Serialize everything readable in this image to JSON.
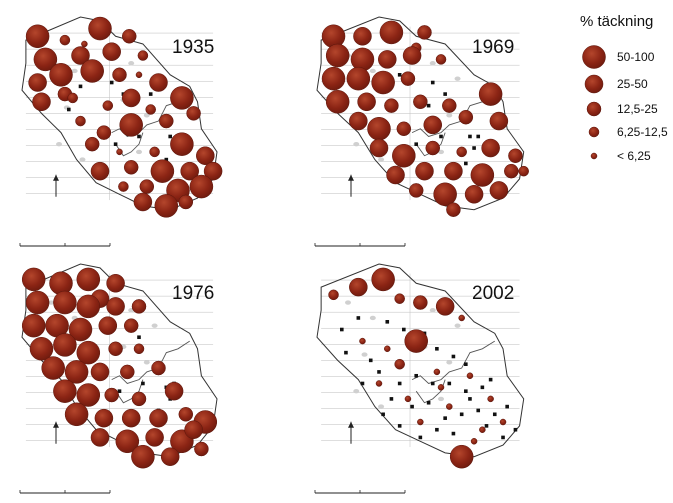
{
  "legend": {
    "title": "% täckning",
    "color": "#8b2414",
    "items": [
      {
        "label": "50-100",
        "level": 5
      },
      {
        "label": "25-50",
        "level": 4
      },
      {
        "label": "12,5-25",
        "level": 3
      },
      {
        "label": "6,25-12,5",
        "level": 2
      },
      {
        "label": "< 6,25",
        "level": 1
      }
    ]
  },
  "maps": [
    {
      "year": "1935",
      "circles": [
        [
          0.08,
          0.1,
          5
        ],
        [
          0.22,
          0.12,
          2
        ],
        [
          0.4,
          0.06,
          5
        ],
        [
          0.55,
          0.1,
          3
        ],
        [
          0.32,
          0.14,
          1
        ],
        [
          0.12,
          0.22,
          5
        ],
        [
          0.3,
          0.2,
          4
        ],
        [
          0.46,
          0.18,
          4
        ],
        [
          0.62,
          0.2,
          2
        ],
        [
          0.08,
          0.34,
          4
        ],
        [
          0.2,
          0.3,
          5
        ],
        [
          0.36,
          0.28,
          5
        ],
        [
          0.5,
          0.3,
          3
        ],
        [
          0.22,
          0.4,
          3
        ],
        [
          0.6,
          0.3,
          1
        ],
        [
          0.1,
          0.44,
          4
        ],
        [
          0.26,
          0.42,
          2
        ],
        [
          0.44,
          0.46,
          2
        ],
        [
          0.56,
          0.42,
          4
        ],
        [
          0.7,
          0.34,
          4
        ],
        [
          0.82,
          0.42,
          5
        ],
        [
          0.66,
          0.48,
          2
        ],
        [
          0.3,
          0.54,
          2
        ],
        [
          0.42,
          0.6,
          3
        ],
        [
          0.56,
          0.56,
          5
        ],
        [
          0.74,
          0.54,
          3
        ],
        [
          0.88,
          0.5,
          3
        ],
        [
          0.36,
          0.66,
          3
        ],
        [
          0.5,
          0.7,
          1
        ],
        [
          0.68,
          0.7,
          2
        ],
        [
          0.82,
          0.66,
          5
        ],
        [
          0.94,
          0.72,
          4
        ],
        [
          0.4,
          0.8,
          4
        ],
        [
          0.56,
          0.78,
          3
        ],
        [
          0.72,
          0.8,
          5
        ],
        [
          0.86,
          0.8,
          4
        ],
        [
          0.98,
          0.8,
          4
        ],
        [
          0.52,
          0.88,
          2
        ],
        [
          0.64,
          0.88,
          3
        ],
        [
          0.8,
          0.9,
          5
        ],
        [
          0.92,
          0.88,
          5
        ],
        [
          0.62,
          0.96,
          4
        ],
        [
          0.74,
          0.98,
          5
        ],
        [
          0.84,
          0.96,
          3
        ]
      ],
      "squares": [
        [
          0.46,
          0.34
        ],
        [
          0.52,
          0.4
        ],
        [
          0.66,
          0.4
        ],
        [
          0.76,
          0.62
        ],
        [
          0.8,
          0.62
        ],
        [
          0.78,
          0.68
        ],
        [
          0.3,
          0.36
        ],
        [
          0.24,
          0.48
        ],
        [
          0.6,
          0.62
        ],
        [
          0.48,
          0.66
        ],
        [
          0.74,
          0.74
        ],
        [
          0.38,
          0.26
        ]
      ]
    },
    {
      "year": "1969",
      "circles": [
        [
          0.08,
          0.1,
          5
        ],
        [
          0.22,
          0.1,
          4
        ],
        [
          0.36,
          0.08,
          5
        ],
        [
          0.52,
          0.08,
          3
        ],
        [
          0.48,
          0.16,
          2
        ],
        [
          0.1,
          0.2,
          5
        ],
        [
          0.22,
          0.22,
          5
        ],
        [
          0.34,
          0.22,
          4
        ],
        [
          0.46,
          0.2,
          4
        ],
        [
          0.6,
          0.22,
          2
        ],
        [
          0.08,
          0.32,
          5
        ],
        [
          0.2,
          0.32,
          5
        ],
        [
          0.32,
          0.34,
          5
        ],
        [
          0.44,
          0.32,
          3
        ],
        [
          0.1,
          0.44,
          5
        ],
        [
          0.24,
          0.44,
          4
        ],
        [
          0.36,
          0.46,
          3
        ],
        [
          0.5,
          0.44,
          3
        ],
        [
          0.64,
          0.46,
          3
        ],
        [
          0.84,
          0.4,
          5
        ],
        [
          0.2,
          0.54,
          4
        ],
        [
          0.3,
          0.58,
          5
        ],
        [
          0.42,
          0.58,
          3
        ],
        [
          0.56,
          0.56,
          4
        ],
        [
          0.72,
          0.52,
          3
        ],
        [
          0.88,
          0.54,
          4
        ],
        [
          0.3,
          0.68,
          4
        ],
        [
          0.42,
          0.72,
          5
        ],
        [
          0.56,
          0.68,
          3
        ],
        [
          0.7,
          0.7,
          2
        ],
        [
          0.84,
          0.68,
          4
        ],
        [
          0.96,
          0.72,
          3
        ],
        [
          0.38,
          0.82,
          4
        ],
        [
          0.52,
          0.8,
          4
        ],
        [
          0.66,
          0.8,
          4
        ],
        [
          0.8,
          0.82,
          5
        ],
        [
          0.94,
          0.8,
          3
        ],
        [
          0.48,
          0.9,
          3
        ],
        [
          0.62,
          0.92,
          5
        ],
        [
          0.76,
          0.92,
          4
        ],
        [
          0.88,
          0.9,
          4
        ],
        [
          0.66,
          1.0,
          3
        ],
        [
          1.0,
          0.8,
          2
        ]
      ],
      "squares": [
        [
          0.56,
          0.34
        ],
        [
          0.62,
          0.4
        ],
        [
          0.74,
          0.62
        ],
        [
          0.78,
          0.62
        ],
        [
          0.76,
          0.68
        ],
        [
          0.6,
          0.62
        ],
        [
          0.48,
          0.66
        ],
        [
          0.72,
          0.76
        ],
        [
          0.4,
          0.3
        ],
        [
          0.54,
          0.46
        ]
      ]
    },
    {
      "year": "1976",
      "circles": [
        [
          0.06,
          0.08,
          5
        ],
        [
          0.2,
          0.1,
          5
        ],
        [
          0.34,
          0.08,
          5
        ],
        [
          0.48,
          0.1,
          4
        ],
        [
          0.4,
          0.18,
          4
        ],
        [
          0.08,
          0.2,
          5
        ],
        [
          0.22,
          0.2,
          5
        ],
        [
          0.34,
          0.22,
          5
        ],
        [
          0.48,
          0.22,
          4
        ],
        [
          0.6,
          0.22,
          3
        ],
        [
          0.06,
          0.32,
          5
        ],
        [
          0.18,
          0.32,
          5
        ],
        [
          0.3,
          0.34,
          5
        ],
        [
          0.44,
          0.32,
          4
        ],
        [
          0.56,
          0.32,
          3
        ],
        [
          0.1,
          0.44,
          5
        ],
        [
          0.22,
          0.42,
          5
        ],
        [
          0.34,
          0.46,
          5
        ],
        [
          0.48,
          0.44,
          3
        ],
        [
          0.6,
          0.44,
          2
        ],
        [
          0.16,
          0.54,
          5
        ],
        [
          0.28,
          0.56,
          5
        ],
        [
          0.4,
          0.56,
          4
        ],
        [
          0.54,
          0.56,
          3
        ],
        [
          0.7,
          0.54,
          3
        ],
        [
          0.22,
          0.66,
          5
        ],
        [
          0.34,
          0.68,
          5
        ],
        [
          0.46,
          0.68,
          3
        ],
        [
          0.6,
          0.7,
          3
        ],
        [
          0.78,
          0.66,
          4
        ],
        [
          0.28,
          0.78,
          5
        ],
        [
          0.42,
          0.8,
          4
        ],
        [
          0.56,
          0.8,
          4
        ],
        [
          0.7,
          0.8,
          4
        ],
        [
          0.84,
          0.78,
          3
        ],
        [
          0.94,
          0.82,
          5
        ],
        [
          0.4,
          0.9,
          4
        ],
        [
          0.54,
          0.92,
          5
        ],
        [
          0.68,
          0.9,
          4
        ],
        [
          0.82,
          0.92,
          5
        ],
        [
          0.92,
          0.96,
          3
        ],
        [
          0.62,
          1.0,
          5
        ],
        [
          0.76,
          1.0,
          4
        ],
        [
          0.88,
          0.86,
          4
        ]
      ],
      "squares": [
        [
          0.56,
          0.3
        ],
        [
          0.6,
          0.38
        ],
        [
          0.74,
          0.64
        ],
        [
          0.78,
          0.62
        ],
        [
          0.76,
          0.7
        ],
        [
          0.62,
          0.62
        ],
        [
          0.5,
          0.66
        ],
        [
          0.7,
          0.76
        ]
      ]
    },
    {
      "year": "2002",
      "circles": [
        [
          0.08,
          0.16,
          2
        ],
        [
          0.2,
          0.12,
          4
        ],
        [
          0.32,
          0.08,
          5
        ],
        [
          0.4,
          0.18,
          2
        ],
        [
          0.5,
          0.2,
          3
        ],
        [
          0.62,
          0.22,
          4
        ],
        [
          0.7,
          0.28,
          1
        ],
        [
          0.22,
          0.4,
          1
        ],
        [
          0.34,
          0.44,
          1
        ],
        [
          0.48,
          0.4,
          5
        ],
        [
          0.4,
          0.52,
          2
        ],
        [
          0.58,
          0.56,
          1
        ],
        [
          0.74,
          0.58,
          1
        ],
        [
          0.84,
          0.7,
          1
        ],
        [
          0.64,
          0.74,
          1
        ],
        [
          0.5,
          0.82,
          1
        ],
        [
          0.76,
          0.92,
          1
        ],
        [
          0.7,
          1.0,
          5
        ],
        [
          0.6,
          0.64,
          1
        ],
        [
          0.9,
          0.82,
          1
        ],
        [
          0.3,
          0.62,
          1
        ],
        [
          0.44,
          0.7,
          1
        ],
        [
          0.8,
          0.86,
          1
        ]
      ],
      "squares": [
        [
          0.12,
          0.34
        ],
        [
          0.2,
          0.28
        ],
        [
          0.26,
          0.5
        ],
        [
          0.34,
          0.3
        ],
        [
          0.42,
          0.34
        ],
        [
          0.52,
          0.36
        ],
        [
          0.58,
          0.44
        ],
        [
          0.66,
          0.48
        ],
        [
          0.72,
          0.52
        ],
        [
          0.3,
          0.56
        ],
        [
          0.4,
          0.62
        ],
        [
          0.48,
          0.58
        ],
        [
          0.56,
          0.62
        ],
        [
          0.64,
          0.62
        ],
        [
          0.72,
          0.66
        ],
        [
          0.8,
          0.64
        ],
        [
          0.84,
          0.6
        ],
        [
          0.46,
          0.74
        ],
        [
          0.54,
          0.72
        ],
        [
          0.62,
          0.8
        ],
        [
          0.7,
          0.78
        ],
        [
          0.78,
          0.76
        ],
        [
          0.86,
          0.78
        ],
        [
          0.92,
          0.74
        ],
        [
          0.36,
          0.7
        ],
        [
          0.5,
          0.9
        ],
        [
          0.58,
          0.86
        ],
        [
          0.66,
          0.88
        ],
        [
          0.82,
          0.84
        ],
        [
          0.9,
          0.9
        ],
        [
          0.14,
          0.46
        ],
        [
          0.22,
          0.62
        ],
        [
          0.32,
          0.78
        ],
        [
          0.4,
          0.84
        ],
        [
          0.74,
          0.7
        ],
        [
          0.96,
          0.86
        ]
      ]
    }
  ]
}
